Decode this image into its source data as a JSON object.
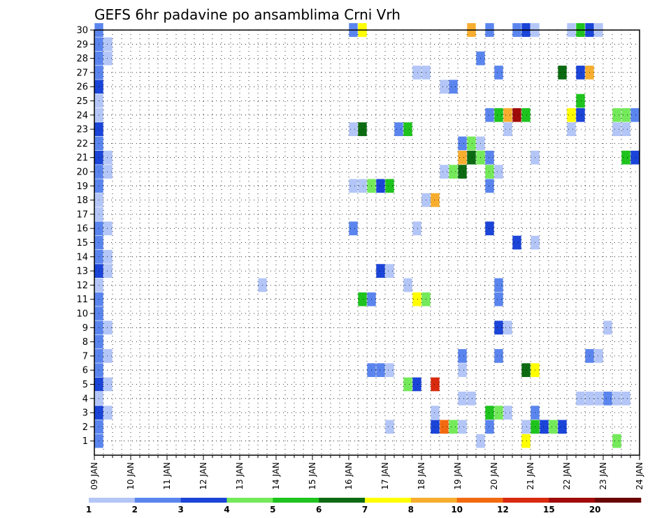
{
  "chart_data": {
    "type": "heatmap",
    "title": "GEFS 6hr padavine po ansamblima Crni Vrh",
    "xlabel": "",
    "ylabel": "",
    "y_min": 0,
    "y_max": 30,
    "y_ticks": [
      1,
      2,
      3,
      4,
      5,
      6,
      7,
      8,
      9,
      10,
      11,
      12,
      13,
      14,
      15,
      16,
      17,
      18,
      19,
      20,
      21,
      22,
      23,
      24,
      25,
      26,
      27,
      28,
      29,
      30
    ],
    "x_start_day": 9,
    "x_end_day": 24,
    "x_tick_labels": [
      "09 JAN",
      "10 JAN",
      "11 JAN",
      "12 JAN",
      "13 JAN",
      "14 JAN",
      "15 JAN",
      "16 JAN",
      "17 JAN",
      "18 JAN",
      "19 JAN",
      "20 JAN",
      "21 JAN",
      "22 JAN",
      "23 JAN",
      "24 JAN"
    ],
    "grid": true,
    "colorbar": {
      "labels": [
        "1",
        "2",
        "3",
        "4",
        "5",
        "6",
        "7",
        "8",
        "10",
        "12",
        "15",
        "20"
      ],
      "colors": [
        "#b3c6f7",
        "#5b85ee",
        "#1b44d8",
        "#74ea5a",
        "#1ec31e",
        "#0c6b12",
        "#ffff00",
        "#f7ad2e",
        "#f26a10",
        "#d82a0f",
        "#a00a0a",
        "#6b0404"
      ]
    },
    "cells": [
      {
        "m": 30,
        "x": 9.25,
        "c": 2
      },
      {
        "m": 29,
        "x": 9.25,
        "c": 2
      },
      {
        "m": 29,
        "x": 9.5,
        "c": 1
      },
      {
        "m": 28,
        "x": 9.25,
        "c": 2
      },
      {
        "m": 28,
        "x": 9.5,
        "c": 1
      },
      {
        "m": 27,
        "x": 9.25,
        "c": 2
      },
      {
        "m": 26,
        "x": 9.25,
        "c": 3
      },
      {
        "m": 25,
        "x": 9.25,
        "c": 1
      },
      {
        "m": 24,
        "x": 9.25,
        "c": 1
      },
      {
        "m": 23,
        "x": 9.25,
        "c": 3
      },
      {
        "m": 22,
        "x": 9.25,
        "c": 2
      },
      {
        "m": 21,
        "x": 9.25,
        "c": 3
      },
      {
        "m": 21,
        "x": 9.5,
        "c": 1
      },
      {
        "m": 20,
        "x": 9.25,
        "c": 2
      },
      {
        "m": 20,
        "x": 9.5,
        "c": 1
      },
      {
        "m": 19,
        "x": 9.25,
        "c": 2
      },
      {
        "m": 18,
        "x": 9.25,
        "c": 1
      },
      {
        "m": 17,
        "x": 9.25,
        "c": 1
      },
      {
        "m": 16,
        "x": 9.25,
        "c": 2
      },
      {
        "m": 16,
        "x": 9.5,
        "c": 1
      },
      {
        "m": 15,
        "x": 9.25,
        "c": 2
      },
      {
        "m": 14,
        "x": 9.25,
        "c": 2
      },
      {
        "m": 14,
        "x": 9.5,
        "c": 1
      },
      {
        "m": 13,
        "x": 9.25,
        "c": 3
      },
      {
        "m": 13,
        "x": 9.5,
        "c": 1
      },
      {
        "m": 12,
        "x": 9.25,
        "c": 1
      },
      {
        "m": 11,
        "x": 9.25,
        "c": 2
      },
      {
        "m": 10,
        "x": 9.25,
        "c": 2
      },
      {
        "m": 9,
        "x": 9.25,
        "c": 2
      },
      {
        "m": 9,
        "x": 9.5,
        "c": 1
      },
      {
        "m": 8,
        "x": 9.25,
        "c": 2
      },
      {
        "m": 7,
        "x": 9.25,
        "c": 2
      },
      {
        "m": 7,
        "x": 9.5,
        "c": 1
      },
      {
        "m": 6,
        "x": 9.25,
        "c": 2
      },
      {
        "m": 5,
        "x": 9.25,
        "c": 3
      },
      {
        "m": 5,
        "x": 9.5,
        "c": 1
      },
      {
        "m": 4,
        "x": 9.25,
        "c": 1
      },
      {
        "m": 3,
        "x": 9.25,
        "c": 3
      },
      {
        "m": 3,
        "x": 9.5,
        "c": 1
      },
      {
        "m": 2,
        "x": 9.25,
        "c": 2
      },
      {
        "m": 1,
        "x": 9.25,
        "c": 2
      },
      {
        "m": 30,
        "x": 16.25,
        "c": 2
      },
      {
        "m": 30,
        "x": 16.5,
        "c": 7
      },
      {
        "m": 30,
        "x": 19.5,
        "c": 8
      },
      {
        "m": 30,
        "x": 20.0,
        "c": 2
      },
      {
        "m": 30,
        "x": 20.75,
        "c": 2
      },
      {
        "m": 30,
        "x": 21.0,
        "c": 3
      },
      {
        "m": 30,
        "x": 21.25,
        "c": 1
      },
      {
        "m": 30,
        "x": 22.25,
        "c": 1
      },
      {
        "m": 30,
        "x": 22.5,
        "c": 5
      },
      {
        "m": 30,
        "x": 22.75,
        "c": 3
      },
      {
        "m": 30,
        "x": 23.0,
        "c": 1
      },
      {
        "m": 28,
        "x": 19.75,
        "c": 2
      },
      {
        "m": 27,
        "x": 18.0,
        "c": 1
      },
      {
        "m": 27,
        "x": 18.25,
        "c": 1
      },
      {
        "m": 27,
        "x": 20.25,
        "c": 2
      },
      {
        "m": 27,
        "x": 22.0,
        "c": 6
      },
      {
        "m": 27,
        "x": 22.5,
        "c": 3
      },
      {
        "m": 27,
        "x": 22.75,
        "c": 8
      },
      {
        "m": 26,
        "x": 18.75,
        "c": 1
      },
      {
        "m": 26,
        "x": 19.0,
        "c": 2
      },
      {
        "m": 25,
        "x": 22.5,
        "c": 5
      },
      {
        "m": 24,
        "x": 20.0,
        "c": 2
      },
      {
        "m": 24,
        "x": 20.25,
        "c": 5
      },
      {
        "m": 24,
        "x": 20.5,
        "c": 8
      },
      {
        "m": 24,
        "x": 20.75,
        "c": 11
      },
      {
        "m": 24,
        "x": 21.0,
        "c": 5
      },
      {
        "m": 24,
        "x": 22.25,
        "c": 7
      },
      {
        "m": 24,
        "x": 22.5,
        "c": 3
      },
      {
        "m": 24,
        "x": 23.5,
        "c": 4
      },
      {
        "m": 24,
        "x": 23.75,
        "c": 4
      },
      {
        "m": 24,
        "x": 24.0,
        "c": 2
      },
      {
        "m": 23,
        "x": 16.25,
        "c": 1
      },
      {
        "m": 23,
        "x": 16.5,
        "c": 6
      },
      {
        "m": 23,
        "x": 17.5,
        "c": 2
      },
      {
        "m": 23,
        "x": 17.75,
        "c": 5
      },
      {
        "m": 23,
        "x": 20.5,
        "c": 1
      },
      {
        "m": 23,
        "x": 22.25,
        "c": 1
      },
      {
        "m": 23,
        "x": 23.5,
        "c": 1
      },
      {
        "m": 23,
        "x": 23.75,
        "c": 1
      },
      {
        "m": 22,
        "x": 19.25,
        "c": 2
      },
      {
        "m": 22,
        "x": 19.5,
        "c": 4
      },
      {
        "m": 22,
        "x": 19.75,
        "c": 1
      },
      {
        "m": 21,
        "x": 19.25,
        "c": 8
      },
      {
        "m": 21,
        "x": 19.5,
        "c": 6
      },
      {
        "m": 21,
        "x": 19.75,
        "c": 4
      },
      {
        "m": 21,
        "x": 20.0,
        "c": 2
      },
      {
        "m": 21,
        "x": 21.25,
        "c": 1
      },
      {
        "m": 21,
        "x": 23.75,
        "c": 5
      },
      {
        "m": 21,
        "x": 24.0,
        "c": 3
      },
      {
        "m": 20,
        "x": 18.75,
        "c": 1
      },
      {
        "m": 20,
        "x": 19.0,
        "c": 4
      },
      {
        "m": 20,
        "x": 19.25,
        "c": 6
      },
      {
        "m": 20,
        "x": 20.0,
        "c": 4
      },
      {
        "m": 20,
        "x": 20.25,
        "c": 1
      },
      {
        "m": 19,
        "x": 16.25,
        "c": 1
      },
      {
        "m": 19,
        "x": 16.5,
        "c": 1
      },
      {
        "m": 19,
        "x": 16.75,
        "c": 4
      },
      {
        "m": 19,
        "x": 17.0,
        "c": 3
      },
      {
        "m": 19,
        "x": 17.25,
        "c": 5
      },
      {
        "m": 19,
        "x": 20.0,
        "c": 2
      },
      {
        "m": 18,
        "x": 18.25,
        "c": 1
      },
      {
        "m": 18,
        "x": 18.5,
        "c": 8
      },
      {
        "m": 16,
        "x": 16.25,
        "c": 2
      },
      {
        "m": 16,
        "x": 18.0,
        "c": 1
      },
      {
        "m": 16,
        "x": 20.0,
        "c": 3
      },
      {
        "m": 15,
        "x": 20.75,
        "c": 3
      },
      {
        "m": 15,
        "x": 21.25,
        "c": 1
      },
      {
        "m": 13,
        "x": 17.0,
        "c": 3
      },
      {
        "m": 13,
        "x": 17.25,
        "c": 1
      },
      {
        "m": 12,
        "x": 13.75,
        "c": 1
      },
      {
        "m": 12,
        "x": 17.75,
        "c": 1
      },
      {
        "m": 12,
        "x": 20.25,
        "c": 2
      },
      {
        "m": 11,
        "x": 16.5,
        "c": 5
      },
      {
        "m": 11,
        "x": 16.75,
        "c": 2
      },
      {
        "m": 11,
        "x": 18.0,
        "c": 7
      },
      {
        "m": 11,
        "x": 18.25,
        "c": 4
      },
      {
        "m": 11,
        "x": 20.25,
        "c": 2
      },
      {
        "m": 9,
        "x": 20.25,
        "c": 3
      },
      {
        "m": 9,
        "x": 20.5,
        "c": 1
      },
      {
        "m": 9,
        "x": 23.25,
        "c": 1
      },
      {
        "m": 7,
        "x": 19.25,
        "c": 2
      },
      {
        "m": 7,
        "x": 20.25,
        "c": 2
      },
      {
        "m": 7,
        "x": 22.75,
        "c": 2
      },
      {
        "m": 7,
        "x": 23.0,
        "c": 1
      },
      {
        "m": 6,
        "x": 16.75,
        "c": 2
      },
      {
        "m": 6,
        "x": 17.0,
        "c": 2
      },
      {
        "m": 6,
        "x": 17.25,
        "c": 1
      },
      {
        "m": 6,
        "x": 19.25,
        "c": 1
      },
      {
        "m": 6,
        "x": 21.0,
        "c": 6
      },
      {
        "m": 6,
        "x": 21.25,
        "c": 7
      },
      {
        "m": 5,
        "x": 17.75,
        "c": 4
      },
      {
        "m": 5,
        "x": 18.0,
        "c": 3
      },
      {
        "m": 5,
        "x": 18.5,
        "c": 10
      },
      {
        "m": 4,
        "x": 19.25,
        "c": 1
      },
      {
        "m": 4,
        "x": 19.5,
        "c": 1
      },
      {
        "m": 4,
        "x": 22.5,
        "c": 1
      },
      {
        "m": 4,
        "x": 22.75,
        "c": 1
      },
      {
        "m": 4,
        "x": 23.0,
        "c": 1
      },
      {
        "m": 4,
        "x": 23.25,
        "c": 2
      },
      {
        "m": 4,
        "x": 23.5,
        "c": 1
      },
      {
        "m": 4,
        "x": 23.75,
        "c": 1
      },
      {
        "m": 3,
        "x": 18.5,
        "c": 1
      },
      {
        "m": 3,
        "x": 20.0,
        "c": 5
      },
      {
        "m": 3,
        "x": 20.25,
        "c": 4
      },
      {
        "m": 3,
        "x": 20.5,
        "c": 1
      },
      {
        "m": 3,
        "x": 21.25,
        "c": 2
      },
      {
        "m": 2,
        "x": 17.25,
        "c": 1
      },
      {
        "m": 2,
        "x": 18.5,
        "c": 3
      },
      {
        "m": 2,
        "x": 18.75,
        "c": 9
      },
      {
        "m": 2,
        "x": 19.0,
        "c": 4
      },
      {
        "m": 2,
        "x": 19.25,
        "c": 1
      },
      {
        "m": 2,
        "x": 20.0,
        "c": 2
      },
      {
        "m": 2,
        "x": 21.0,
        "c": 1
      },
      {
        "m": 2,
        "x": 21.25,
        "c": 5
      },
      {
        "m": 2,
        "x": 21.5,
        "c": 3
      },
      {
        "m": 2,
        "x": 21.75,
        "c": 4
      },
      {
        "m": 2,
        "x": 22.0,
        "c": 3
      },
      {
        "m": 1,
        "x": 19.75,
        "c": 1
      },
      {
        "m": 1,
        "x": 21.0,
        "c": 7
      },
      {
        "m": 1,
        "x": 23.5,
        "c": 4
      }
    ]
  }
}
